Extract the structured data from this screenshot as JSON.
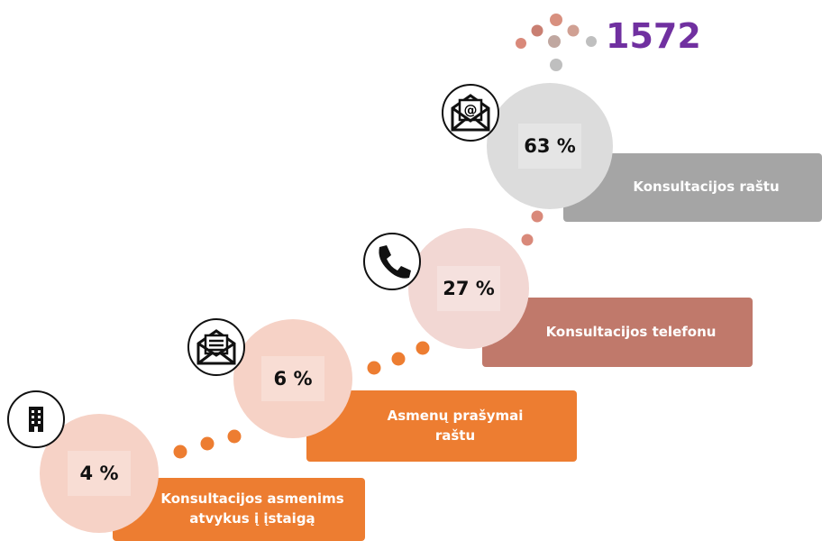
{
  "logo": "1572",
  "items": [
    {
      "percent": "4 %",
      "label": "Konsultacijos asmenims atvykus į įstaigą"
    },
    {
      "percent": "6 %",
      "label": "Asmenų prašymai raštu"
    },
    {
      "percent": "27 %",
      "label": "Konsultacijos telefonu"
    },
    {
      "percent": "63 %",
      "label": "Konsultacijos raštu"
    }
  ]
}
